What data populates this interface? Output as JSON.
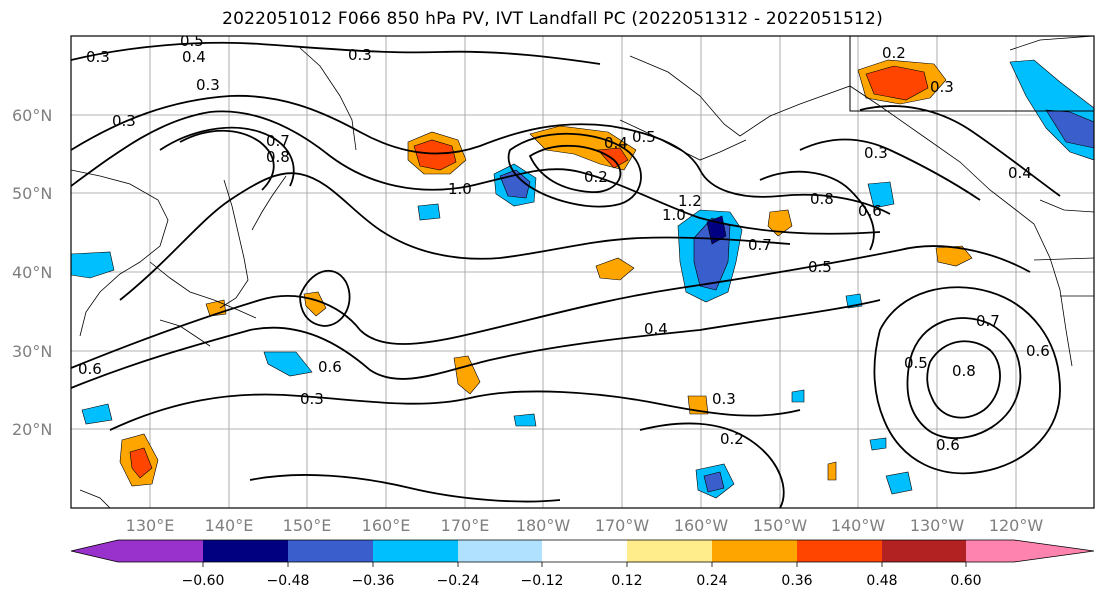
{
  "title": "2022051012 F066 850 hPa PV, IVT Landfall PC (2022051312 - 2022051512)",
  "latitude_labels": [
    "60°N",
    "50°N",
    "40°N",
    "30°N",
    "20°N"
  ],
  "longitude_labels": [
    "130°E",
    "140°E",
    "150°E",
    "160°E",
    "170°E",
    "180°W",
    "170°W",
    "160°W",
    "150°W",
    "140°W",
    "130°W",
    "120°W"
  ],
  "contour_labels": {
    "c1": "0.3",
    "c2": "0.4",
    "c3": "0.3",
    "c4": "0.5",
    "c5": "0.3",
    "c6": "0.8",
    "c7": "0.7",
    "c8": "1.0",
    "c9": "0.4",
    "c10": "0.5",
    "c11": "0.2",
    "c12": "1.2",
    "c13": "1.0",
    "c14": "0.7",
    "c15": "0.5",
    "c16": "0.3",
    "c17": "0.4",
    "c18": "0.6",
    "c19": "0.3",
    "c20": "0.6",
    "c21": "0.8",
    "c22": "0.5",
    "c23": "0.6",
    "c24": "0.3",
    "c25": "0.2",
    "c26": "0.6",
    "c27": "0.7",
    "c28": "0.8",
    "c29": "0.2",
    "c30": "0.3",
    "c31": "0.4",
    "c32": "0.3",
    "c33": "0.6"
  },
  "colorbar": {
    "tick_labels": [
      "−0.60",
      "−0.48",
      "−0.36",
      "−0.24",
      "−0.12",
      "0.12",
      "0.24",
      "0.36",
      "0.48",
      "0.60"
    ],
    "colors": [
      "#9932cc",
      "#000080",
      "#3a5fcd",
      "#00bfff",
      "#b0e2ff",
      "#ffffff",
      "#ffec8b",
      "#ffa500",
      "#ff4500",
      "#b22222",
      "#ff83af"
    ]
  },
  "shading_colors": {
    "neg_light": "#b0e2ff",
    "neg_mid": "#00bfff",
    "neg_dark": "#3a5fcd",
    "neg_darkest": "#000080",
    "pos_light": "#ffec8b",
    "pos_mid": "#ffa500",
    "pos_dark": "#ff4500"
  }
}
